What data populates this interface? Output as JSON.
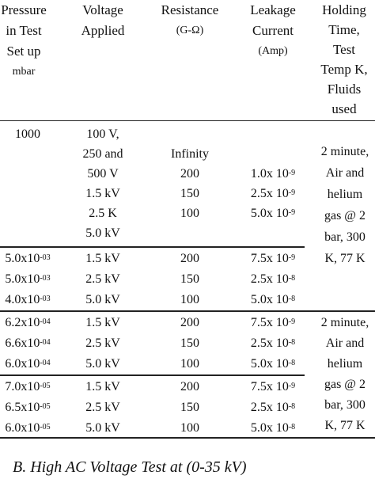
{
  "table": {
    "headers": [
      {
        "lines": [
          "Pressure",
          "in Test",
          "Set up",
          "mbar"
        ]
      },
      {
        "lines": [
          "Voltage",
          "Applied"
        ]
      },
      {
        "lines": [
          "Resistance",
          "(G-Ω)"
        ]
      },
      {
        "lines": [
          "Leakage",
          "Current",
          "(Amp)"
        ]
      },
      {
        "lines": [
          "Holding",
          "Time,",
          "Test",
          "Temp K,",
          "Fluids",
          "used"
        ]
      }
    ],
    "group1": {
      "pressure": "1000",
      "voltages": [
        "100 V,",
        "250 and",
        "500 V",
        "1.5 kV",
        "2.5 K",
        "5.0 kV"
      ],
      "resistances": [
        "Infinity",
        "200",
        "150",
        "100"
      ],
      "currents": [
        {
          "base": "1.0x 10",
          "exp": "-9"
        },
        {
          "base": "2.5x 10",
          "exp": "-9"
        },
        {
          "base": "5.0x 10",
          "exp": "-9"
        }
      ]
    },
    "group2": [
      {
        "p_base": "5.0x10",
        "p_exp": "-03",
        "voltage": "1.5 kV",
        "resistance": "200",
        "c_base": "7.5x 10",
        "c_exp": "-9"
      },
      {
        "p_base": "5.0x10",
        "p_exp": "-03",
        "voltage": "2.5 kV",
        "resistance": "150",
        "c_base": "2.5x 10",
        "c_exp": "-8"
      },
      {
        "p_base": "4.0x10",
        "p_exp": "-03",
        "voltage": "5.0 kV",
        "resistance": "100",
        "c_base": "5.0x 10",
        "c_exp": "-8"
      }
    ],
    "group3": [
      {
        "p_base": "6.2x10",
        "p_exp": "-04",
        "voltage": "1.5 kV",
        "resistance": "200",
        "c_base": "7.5x 10",
        "c_exp": "-9"
      },
      {
        "p_base": "6.6x10",
        "p_exp": "-04",
        "voltage": "2.5 kV",
        "resistance": "150",
        "c_base": "2.5x 10",
        "c_exp": "-8"
      },
      {
        "p_base": "6.0x10",
        "p_exp": "-04",
        "voltage": "5.0 kV",
        "resistance": "100",
        "c_base": "5.0x 10",
        "c_exp": "-8"
      }
    ],
    "group4": [
      {
        "p_base": "7.0x10",
        "p_exp": "-05",
        "voltage": "1.5 kV",
        "resistance": "200",
        "c_base": "7.5x 10",
        "c_exp": "-9"
      },
      {
        "p_base": "6.5x10",
        "p_exp": "-05",
        "voltage": "2.5 kV",
        "resistance": "150",
        "c_base": "2.5x 10",
        "c_exp": "-8"
      },
      {
        "p_base": "6.0x10",
        "p_exp": "-05",
        "voltage": "5.0 kV",
        "resistance": "100",
        "c_base": "5.0x 10",
        "c_exp": "-8"
      }
    ],
    "holding_a": [
      "2 minute,",
      "Air and",
      "helium",
      "gas @ 2",
      "bar, 300",
      "K, 77 K"
    ],
    "holding_b": [
      "2 minute,",
      "Air and",
      "helium",
      "gas @ 2",
      "bar, 300",
      "K, 77 K"
    ]
  },
  "caption": "B.   High AC Voltage Test at (0-35 kV)"
}
